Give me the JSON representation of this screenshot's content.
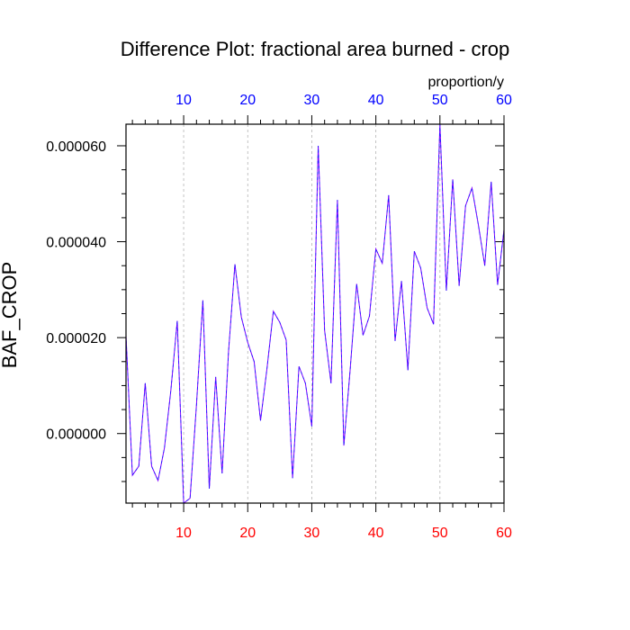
{
  "colors": {
    "background": "#ffffff",
    "frame": "#000000",
    "grid": "#b4b4b4",
    "series_main": "#7f00ff",
    "series_overlay": "#1a1aff",
    "bottom_tick_labels": "#ff0000",
    "top_tick_labels": "#0000ff"
  },
  "chart_data": {
    "type": "line",
    "title": "Difference Plot: fractional area burned - crop",
    "units_label": "proportion/y",
    "ylabel": "BAF_CROP",
    "xlim": [
      1,
      60
    ],
    "ylim": [
      -1.45e-05,
      6.45e-05
    ],
    "x_ticks_major": [
      10,
      20,
      30,
      40,
      50,
      60
    ],
    "x_ticks_major_labels": [
      "10",
      "20",
      "30",
      "40",
      "50",
      "60"
    ],
    "x_ticks_minor_step": 2,
    "y_ticks_major": [
      0.0,
      2e-05,
      4e-05,
      6e-05
    ],
    "y_ticks_major_labels": [
      "0.000000",
      "0.000020",
      "0.000040",
      "0.000060"
    ],
    "y_ticks_minor_step": 5e-06,
    "grid": "vertical dashed at major x ticks",
    "x": [
      1,
      2,
      3,
      4,
      5,
      6,
      7,
      8,
      9,
      10,
      11,
      12,
      13,
      14,
      15,
      16,
      17,
      18,
      19,
      20,
      21,
      22,
      23,
      24,
      25,
      26,
      27,
      28,
      29,
      30,
      31,
      32,
      33,
      34,
      35,
      36,
      37,
      38,
      39,
      40,
      41,
      42,
      43,
      44,
      45,
      46,
      47,
      48,
      49,
      50,
      51,
      52,
      53,
      54,
      55,
      56,
      57,
      58,
      59,
      60
    ],
    "series": [
      {
        "values": [
          2.05e-05,
          -8.7e-06,
          -6.8e-06,
          1.05e-05,
          -6.8e-06,
          -9.8e-06,
          -3e-06,
          9e-06,
          2.35e-05,
          -1.45e-05,
          -1.35e-05,
          6e-06,
          2.78e-05,
          -1.15e-05,
          1.18e-05,
          -8.3e-06,
          1.7e-05,
          3.53e-05,
          2.43e-05,
          1.9e-05,
          1.5e-05,
          2.7e-06,
          1.35e-05,
          2.55e-05,
          2.32e-05,
          1.95e-05,
          -9.3e-06,
          1.4e-05,
          1.05e-05,
          1.5e-06,
          6e-05,
          2.15e-05,
          1.05e-05,
          4.87e-05,
          -2.5e-06,
          1.35e-05,
          3.12e-05,
          2.05e-05,
          2.45e-05,
          3.85e-05,
          3.55e-05,
          4.97e-05,
          1.93e-05,
          3.18e-05,
          1.32e-05,
          3.8e-05,
          3.45e-05,
          2.62e-05,
          2.28e-05,
          6.45e-05,
          2.98e-05,
          5.3e-05,
          3.08e-05,
          4.75e-05,
          5.12e-05,
          4.35e-05,
          3.5e-05,
          5.25e-05,
          3.1e-05,
          4.25e-05
        ]
      }
    ]
  }
}
